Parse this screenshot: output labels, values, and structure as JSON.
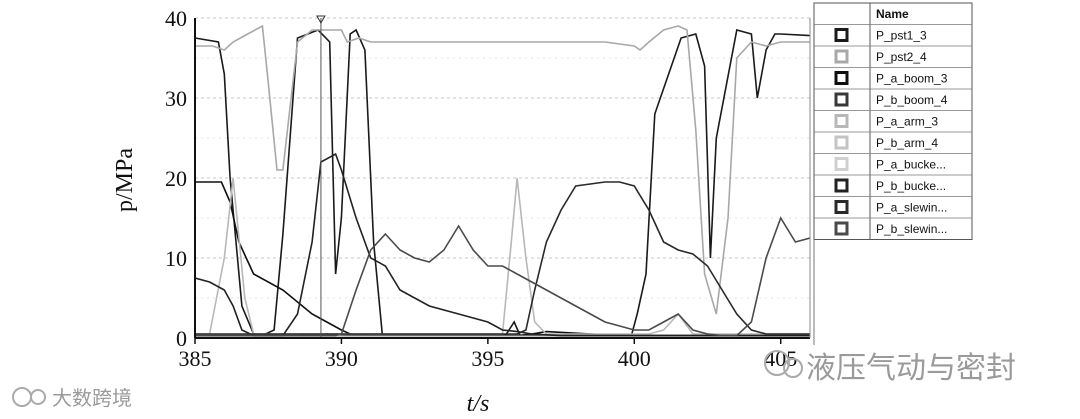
{
  "chart_data": {
    "type": "line",
    "title": "",
    "xlabel": "t/s",
    "ylabel": "p/MPa",
    "xlim": [
      385,
      406
    ],
    "ylim": [
      0,
      40
    ],
    "x_ticks": [
      "385",
      "390",
      "395",
      "400",
      "405"
    ],
    "y_ticks": [
      "0",
      "10",
      "20",
      "30",
      "40"
    ],
    "grid": "horizontal dashed",
    "legend": {
      "placement": "right",
      "header": "Name",
      "entries": [
        "P_pst1_3",
        "P_pst2_4",
        "P_a_boom_3",
        "P_b_boom_4",
        "P_a_arm_3",
        "P_b_arm_4",
        "P_a_bucke...",
        "P_b_bucke...",
        "P_a_slewin...",
        "P_b_slewin..."
      ]
    },
    "series": [
      {
        "name": "P_pst1_3",
        "color": "#1a1a1a",
        "x": [
          385,
          385.8,
          386.0,
          386.2,
          386.6,
          387.0,
          387.3,
          387.7,
          388.0,
          388.5,
          389.2,
          389.6,
          389.8,
          390.0,
          390.3,
          390.5,
          390.8,
          391.1,
          391.4,
          395.6,
          395.9,
          396.1,
          399.9,
          400.1,
          400.4,
          400.7,
          401.6,
          402.1,
          402.4,
          402.6,
          402.8,
          403.5,
          404.0,
          404.2,
          404.5,
          404.8,
          405.0,
          406
        ],
        "y": [
          37.5,
          37,
          33,
          20,
          4,
          0.5,
          0.3,
          1,
          13,
          37.5,
          38.5,
          37,
          8,
          15,
          38,
          38.5,
          36,
          12,
          0.3,
          0.3,
          2,
          0.3,
          0.3,
          3,
          8,
          28,
          37.5,
          38,
          34,
          10,
          25,
          38.5,
          38,
          30,
          36,
          38,
          38,
          37.8
        ]
      },
      {
        "name": "P_pst2_4",
        "color": "#a8a8a8",
        "x": [
          385,
          385.6,
          386.0,
          386.3,
          386.8,
          387.3,
          387.5,
          387.8,
          388.0,
          388.5,
          389.0,
          390.0,
          390.2,
          390.6,
          391.0,
          392.0,
          393.0,
          394.0,
          395.0,
          396.0,
          397.0,
          398.0,
          399.0,
          400.0,
          400.2,
          400.5,
          401.0,
          401.5,
          401.8,
          402.1,
          402.4,
          402.8,
          403.2,
          403.5,
          404.0,
          404.5,
          405.0,
          406
        ],
        "y": [
          36.5,
          36.5,
          36,
          37,
          38,
          39,
          32,
          21,
          21,
          37,
          38.5,
          38.5,
          37,
          37.5,
          37,
          37,
          37,
          37,
          37,
          37,
          37,
          37,
          37,
          36.5,
          36,
          37,
          38.5,
          39,
          38.5,
          26,
          8,
          3,
          15,
          35,
          37,
          36.5,
          37,
          37
        ]
      },
      {
        "name": "P_a_boom_3",
        "color": "#101010",
        "x": [
          385,
          385.9,
          386.2,
          386.5,
          387.0,
          388.0,
          389.0,
          389.5,
          390.0,
          390.3,
          391.0,
          392.0,
          393.0,
          394.0,
          395.0,
          395.6,
          396.0,
          396.5,
          397.0,
          398.0,
          399.0,
          399.5,
          400.0,
          400.2,
          401.0,
          402.0,
          403.0,
          404.0,
          404.5,
          405.0,
          406
        ],
        "y": [
          19.5,
          19.5,
          17,
          12,
          8,
          6,
          3,
          2,
          1,
          0.5,
          0.3,
          0.3,
          0.3,
          0.3,
          0.3,
          0.3,
          0.3,
          0.5,
          0.8,
          0.6,
          0.4,
          0.3,
          0.3,
          0.3,
          0.3,
          0.3,
          0.3,
          0.3,
          0.3,
          0.3,
          0.3
        ]
      },
      {
        "name": "P_b_boom_4",
        "color": "#383838",
        "x": [
          385,
          385.5,
          386.0,
          386.5,
          387.0,
          387.5,
          388.0,
          388.5,
          389.0,
          389.5,
          390.0,
          390.5,
          391.0,
          391.5,
          392.0,
          393.0,
          394.0,
          395.0,
          395.5,
          396.0,
          396.5,
          397.0,
          398.0,
          399.0,
          400.0,
          401.0,
          402.0,
          402.5,
          403.0,
          403.5,
          404.0,
          404.5,
          405.0,
          406
        ],
        "y": [
          0.3,
          0.3,
          0.3,
          0.3,
          0.3,
          0.3,
          0.3,
          0.3,
          0.4,
          0.5,
          0.4,
          0.3,
          0.3,
          0.3,
          0.3,
          0.3,
          0.3,
          0.3,
          0.3,
          0.3,
          0.3,
          0.3,
          0.3,
          0.3,
          0.3,
          0.3,
          0.3,
          0.3,
          0.3,
          0.3,
          0.3,
          0.3,
          0.3,
          0.3
        ]
      },
      {
        "name": "P_a_arm_3",
        "color": "#b8b8b8",
        "x": [
          385,
          385.5,
          386.0,
          386.3,
          386.7,
          387.0,
          388.0,
          389.0,
          390.0,
          391.0,
          392.0,
          393.0,
          394.0,
          395.0,
          395.5,
          395.8,
          396.0,
          396.3,
          396.6,
          397.0,
          398.0,
          399.0,
          400.0,
          400.5,
          401.0,
          401.5,
          402.0,
          402.5,
          403.0,
          403.5,
          404.0,
          404.5,
          405.0,
          406
        ],
        "y": [
          0.5,
          0.5,
          10,
          20,
          5,
          0.5,
          0.5,
          0.5,
          0.5,
          0.5,
          0.5,
          0.5,
          0.5,
          0.5,
          0.5,
          12,
          20,
          10,
          2,
          0.5,
          0.5,
          0.5,
          0.5,
          0.5,
          1,
          3,
          0.5,
          0.5,
          0.5,
          0.5,
          0.5,
          0.5,
          0.5,
          0.5
        ]
      },
      {
        "name": "P_b_arm_4",
        "color": "#c4c4c4",
        "x": [
          385,
          386.0,
          387.0,
          388.0,
          389.0,
          390.0,
          391.0,
          392.0,
          393.0,
          394.0,
          395.0,
          396.0,
          397.0,
          398.0,
          399.0,
          400.0,
          401.0,
          402.0,
          403.0,
          404.0,
          405.0,
          406
        ],
        "y": [
          0.2,
          0.2,
          0.2,
          0.2,
          0.2,
          0.2,
          0.2,
          0.2,
          0.2,
          0.2,
          0.2,
          0.2,
          0.2,
          0.2,
          0.2,
          0.2,
          0.2,
          0.2,
          0.2,
          0.2,
          0.2,
          0.2
        ]
      },
      {
        "name": "P_a_bucke...",
        "color": "#d0d0d0",
        "x": [
          385,
          386.0,
          387.0,
          388.0,
          389.0,
          390.0,
          391.0,
          392.0,
          393.0,
          394.0,
          395.0,
          396.0,
          397.0,
          398.0,
          399.0,
          400.0,
          401.0,
          402.0,
          403.0,
          404.0,
          405.0,
          406
        ],
        "y": [
          0.1,
          0.1,
          0.1,
          0.1,
          0.1,
          0.1,
          0.1,
          0.1,
          0.1,
          0.1,
          0.1,
          0.1,
          0.1,
          0.1,
          0.1,
          0.1,
          0.1,
          0.1,
          0.1,
          0.1,
          0.1,
          0.1
        ]
      },
      {
        "name": "P_b_bucke...",
        "color": "#222222",
        "x": [
          385,
          385.5,
          386.0,
          386.3,
          386.6,
          387.0,
          387.5,
          388.0,
          388.5,
          389.0,
          389.3,
          389.8,
          390.0,
          390.5,
          391.0,
          391.5,
          392.0,
          393.0,
          394.0,
          395.0,
          395.5,
          396.0,
          396.5,
          397.0,
          397.5,
          398.0,
          398.5,
          399.0,
          399.5,
          400.0,
          400.5,
          401.0,
          401.5,
          402.0,
          402.5,
          403.0,
          403.5,
          404.0,
          404.5,
          405.0,
          406
        ],
        "y": [
          7.5,
          7,
          6,
          4,
          1,
          0.3,
          0.3,
          0.3,
          3,
          12,
          22,
          23,
          21,
          15,
          10,
          9,
          6,
          4,
          3,
          2,
          1,
          0.8,
          0.5,
          0.4,
          0.3,
          0.3,
          0.3,
          0.3,
          0.3,
          0.3,
          0.3,
          0.3,
          0.3,
          0.3,
          0.3,
          0.3,
          0.3,
          0.3,
          0.3,
          0.3,
          0.3
        ]
      },
      {
        "name": "P_a_slewin...",
        "color": "#2a2a2a",
        "x": [
          385,
          386.0,
          387.0,
          388.0,
          389.0,
          390.0,
          390.5,
          391.0,
          392.0,
          392.5,
          393.0,
          393.5,
          394.0,
          395.0,
          395.5,
          396.0,
          396.3,
          396.6,
          397.0,
          397.5,
          398.0,
          399.0,
          399.5,
          400.0,
          400.5,
          401.0,
          401.5,
          402.0,
          402.5,
          403.0,
          403.5,
          404.0,
          404.5,
          405.0,
          405.5,
          406
        ],
        "y": [
          0.5,
          0.5,
          0.5,
          0.5,
          0.5,
          0.5,
          0.5,
          0.5,
          0.5,
          0.5,
          0.5,
          0.5,
          0.5,
          0.5,
          0.5,
          0.5,
          1,
          6,
          12,
          16,
          19,
          19.5,
          19.5,
          19,
          16,
          12,
          11,
          10.5,
          9,
          6,
          3,
          1,
          0.5,
          0.5,
          0.5,
          0.5
        ]
      },
      {
        "name": "P_b_slewin...",
        "color": "#4a4a4a",
        "x": [
          385,
          386.0,
          387.0,
          388.0,
          389.0,
          389.8,
          390.0,
          390.5,
          391.0,
          391.5,
          392.0,
          392.5,
          393.0,
          393.5,
          394.0,
          394.5,
          395.0,
          395.5,
          396.0,
          397.0,
          398.0,
          399.0,
          400.0,
          400.5,
          401.0,
          401.5,
          402.0,
          402.5,
          403.0,
          403.5,
          404.0,
          404.5,
          405.0,
          405.5,
          406
        ],
        "y": [
          0.3,
          0.3,
          0.3,
          0.3,
          0.3,
          0.3,
          0.5,
          6,
          11,
          13,
          11,
          10,
          9.5,
          11,
          14,
          11,
          9,
          9,
          8,
          6,
          4,
          2,
          1,
          1,
          2,
          3,
          1,
          0.5,
          0.3,
          0.3,
          2,
          10,
          15,
          12,
          12.5
        ]
      }
    ]
  },
  "watermark": {
    "left_text": "大数跨境",
    "right_text": "液压气动与密封"
  }
}
